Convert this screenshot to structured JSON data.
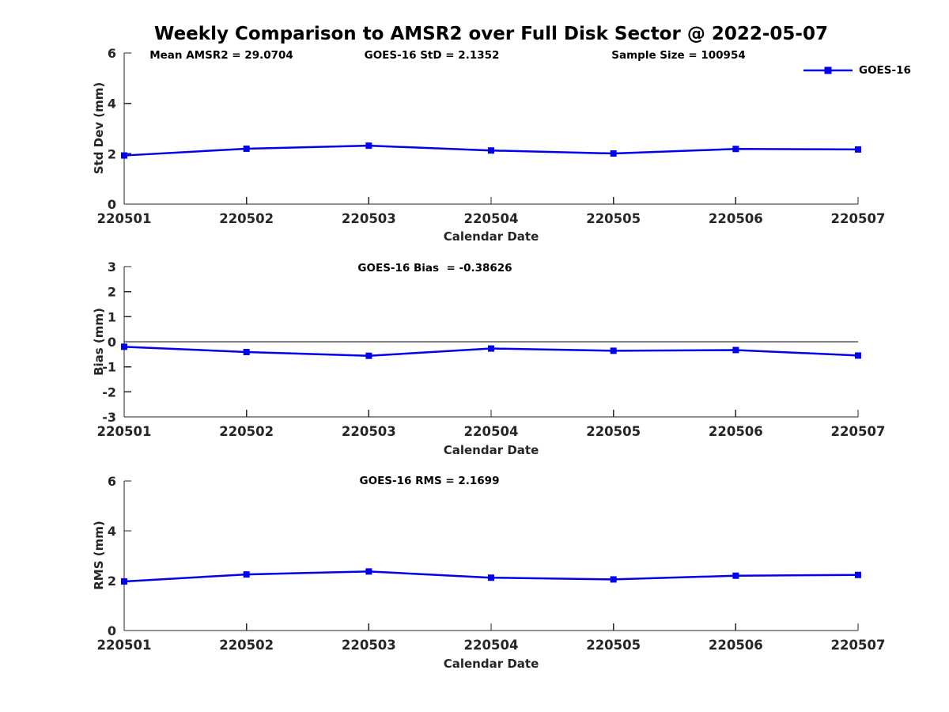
{
  "title": "Weekly Comparison to AMSR2 over Full Disk Sector @ 2022-05-07",
  "legend": {
    "label": "GOES-16"
  },
  "colors": {
    "series": "#0000EE",
    "axis": "#262626",
    "zero_line": "#000000"
  },
  "chart_data": [
    {
      "type": "line",
      "annotations": [
        "Mean AMSR2 = 29.0704",
        "GOES-16 StD = 2.1352",
        "Sample Size = 100954"
      ],
      "categories": [
        "220501",
        "220502",
        "220503",
        "220504",
        "220505",
        "220506",
        "220507"
      ],
      "series": [
        {
          "name": "GOES-16",
          "values": [
            1.93,
            2.2,
            2.32,
            2.13,
            2.01,
            2.19,
            2.17
          ]
        }
      ],
      "xlabel": "Calendar Date",
      "ylabel": "Std Dev (mm)",
      "ylim": [
        0,
        6
      ],
      "yticks": [
        0,
        2,
        4,
        6
      ],
      "grid": false,
      "legend_position": "top-right",
      "zero_line": false
    },
    {
      "type": "line",
      "annotations": [
        "GOES-16 Bias  = -0.38626"
      ],
      "categories": [
        "220501",
        "220502",
        "220503",
        "220504",
        "220505",
        "220506",
        "220507"
      ],
      "series": [
        {
          "name": "GOES-16",
          "values": [
            -0.2,
            -0.41,
            -0.56,
            -0.27,
            -0.36,
            -0.33,
            -0.55
          ]
        }
      ],
      "xlabel": "Calendar Date",
      "ylabel": "Bias (mm)",
      "ylim": [
        -3,
        3
      ],
      "yticks": [
        3,
        2,
        1,
        0,
        -1,
        -2,
        -3
      ],
      "grid": false,
      "legend_position": "none",
      "zero_line": true
    },
    {
      "type": "line",
      "annotations": [
        "GOES-16 RMS = 2.1699"
      ],
      "categories": [
        "220501",
        "220502",
        "220503",
        "220504",
        "220505",
        "220506",
        "220507"
      ],
      "series": [
        {
          "name": "GOES-16",
          "values": [
            1.97,
            2.25,
            2.37,
            2.12,
            2.05,
            2.2,
            2.23
          ]
        }
      ],
      "xlabel": "Calendar Date",
      "ylabel": "RMS (mm)",
      "ylim": [
        0,
        6
      ],
      "yticks": [
        0,
        2,
        4,
        6
      ],
      "grid": false,
      "legend_position": "none",
      "zero_line": true
    }
  ]
}
